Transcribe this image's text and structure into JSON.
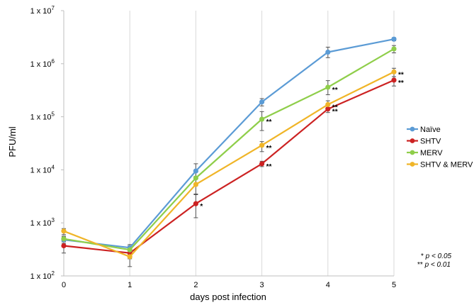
{
  "chart_data": {
    "type": "line",
    "title": "",
    "xlabel": "days post infection",
    "ylabel": "PFU/ml",
    "x": [
      0,
      1,
      2,
      3,
      4,
      5
    ],
    "x_tick_labels": [
      "0",
      "1",
      "2",
      "3",
      "4",
      "5"
    ],
    "y_scale": "log",
    "ylim": [
      100,
      10000000
    ],
    "y_ticks": [
      {
        "value": 100,
        "base": "1 x 10",
        "exp": "2"
      },
      {
        "value": 1000,
        "base": "1 x 10",
        "exp": "3"
      },
      {
        "value": 10000,
        "base": "1 x 10",
        "exp": "4"
      },
      {
        "value": 100000,
        "base": "1 x 10",
        "exp": "5"
      },
      {
        "value": 1000000,
        "base": "1 x 10",
        "exp": "6"
      },
      {
        "value": 10000000,
        "base": "1 x 10",
        "exp": "7"
      }
    ],
    "grid": "vertical",
    "legend_position": "right",
    "series": [
      {
        "name": "Naïve",
        "color": "#5b9bd5",
        "values": [
          480,
          340,
          9500,
          190000,
          1650000,
          2900000
        ],
        "err_low": [
          410,
          300,
          7000,
          160000,
          1300000,
          2700000
        ],
        "err_high": [
          540,
          390,
          13000,
          220000,
          2050000,
          3100000
        ],
        "sig": [
          "",
          "",
          "",
          "",
          "",
          ""
        ]
      },
      {
        "name": "SHTV",
        "color": "#cc2222",
        "values": [
          370,
          270,
          2300,
          13000,
          140000,
          490000
        ],
        "err_low": [
          270,
          210,
          1250,
          11500,
          120000,
          380000
        ],
        "err_high": [
          450,
          330,
          3400,
          14500,
          170000,
          570000
        ],
        "sig": [
          "",
          "",
          "*",
          "**",
          "**",
          "**"
        ]
      },
      {
        "name": "MERV",
        "color": "#8fce4a",
        "values": [
          500,
          310,
          7000,
          90000,
          360000,
          1900000
        ],
        "err_low": [
          440,
          260,
          5000,
          55000,
          260000,
          1600000
        ],
        "err_high": [
          560,
          370,
          9500,
          125000,
          480000,
          2200000
        ],
        "sig": [
          "",
          "",
          "",
          "**",
          "**",
          ""
        ]
      },
      {
        "name": "SHTV & MERV",
        "color": "#f0b528",
        "values": [
          700,
          230,
          5300,
          29000,
          170000,
          700000
        ],
        "err_low": [
          600,
          150,
          3500,
          22000,
          150000,
          510000
        ],
        "err_high": [
          780,
          330,
          7500,
          34000,
          200000,
          820000
        ],
        "sig": [
          "",
          "",
          "",
          "**",
          "**",
          "**"
        ]
      }
    ],
    "footnotes": [
      {
        "stars": "*",
        "text": "p < 0.05"
      },
      {
        "stars": "**",
        "text": "p < 0.01"
      }
    ]
  }
}
